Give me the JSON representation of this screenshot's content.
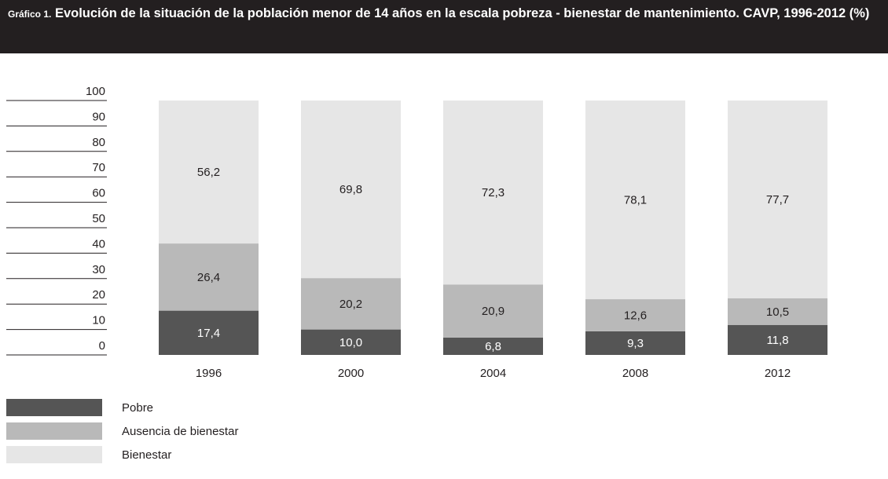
{
  "chart_data": {
    "type": "stacked_bar",
    "title_prefix": "Gráfico 1.",
    "title": "Evolución de la situación de la población menor de 14 años en la escala pobreza - bienestar de mantenimiento. CAVP, 1996-2012 (%)",
    "categories": [
      "1996",
      "2000",
      "2004",
      "2008",
      "2012"
    ],
    "series": [
      {
        "name": "Pobre",
        "color": "#555555",
        "values": [
          17.4,
          10.0,
          6.8,
          9.3,
          11.8
        ],
        "value_labels": [
          "17,4",
          "10,0",
          "6,8",
          "9,3",
          "11,8"
        ]
      },
      {
        "name": "Ausencia de bienestar",
        "color": "#b9b9b9",
        "values": [
          26.4,
          20.2,
          20.9,
          12.6,
          10.5
        ],
        "value_labels": [
          "26,4",
          "20,2",
          "20,9",
          "12,6",
          "10,5"
        ]
      },
      {
        "name": "Bienestar",
        "color": "#e6e6e6",
        "values": [
          56.2,
          69.8,
          72.3,
          78.1,
          77.7
        ],
        "value_labels": [
          "56,2",
          "69,8",
          "72,3",
          "78,1",
          "77,7"
        ]
      }
    ],
    "ylim": [
      0,
      100
    ],
    "yticks": [
      0,
      10,
      20,
      30,
      40,
      50,
      60,
      70,
      80,
      90,
      100
    ]
  }
}
